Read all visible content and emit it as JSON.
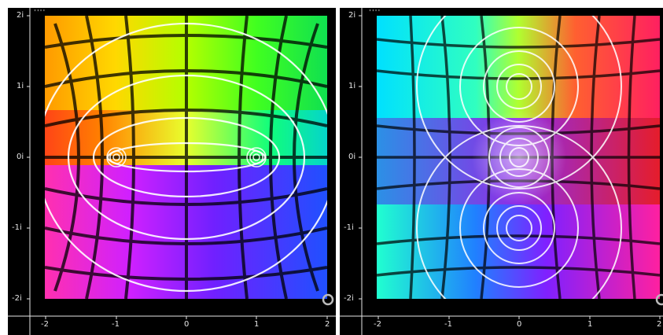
{
  "panels": [
    {
      "id": "left",
      "handle": "''''",
      "y_ticks": [
        "2i",
        "1i",
        "0i",
        "-1i",
        "-2i"
      ],
      "x_ticks": [
        "-2",
        "-1",
        "0",
        "1",
        "2"
      ],
      "function_description": "domain coloring with zeros/poles at -1 and 1"
    },
    {
      "id": "right",
      "handle": "''''",
      "y_ticks": [
        "2i",
        "1i",
        "0i",
        "-1i",
        "-2i"
      ],
      "x_ticks": [
        "-2",
        "-1",
        "0",
        "1",
        "2"
      ]
    }
  ],
  "colors": {
    "background": "#000000",
    "axis": "#e6e6e6",
    "contour": "#ffffff",
    "grid": "#000000"
  },
  "icons": {
    "reset": "refresh-icon",
    "handle": "drag-handle-icon"
  }
}
